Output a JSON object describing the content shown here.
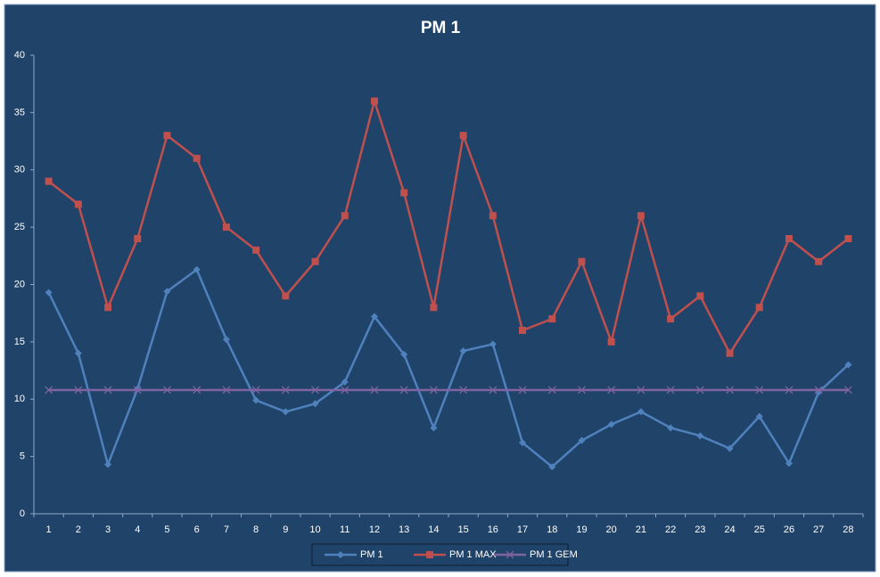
{
  "chart_data": {
    "type": "line",
    "title": "PM 1",
    "categories": [
      "1",
      "2",
      "3",
      "4",
      "5",
      "6",
      "7",
      "8",
      "9",
      "10",
      "11",
      "12",
      "13",
      "14",
      "15",
      "16",
      "17",
      "18",
      "19",
      "20",
      "21",
      "22",
      "23",
      "24",
      "25",
      "26",
      "27",
      "28"
    ],
    "series": [
      {
        "name": "PM 1",
        "color": "#4f81bd",
        "marker": "diamond",
        "values": [
          19.3,
          14.0,
          4.3,
          10.9,
          19.4,
          21.3,
          15.2,
          9.9,
          8.9,
          9.6,
          11.5,
          17.2,
          13.9,
          7.5,
          14.2,
          14.8,
          6.2,
          4.1,
          6.4,
          7.8,
          8.9,
          7.5,
          6.8,
          5.7,
          8.5,
          4.4,
          10.6,
          13.0
        ]
      },
      {
        "name": "PM 1 MAX",
        "color": "#c0504d",
        "marker": "square",
        "values": [
          29,
          27,
          18,
          24,
          33,
          31,
          25,
          23,
          19,
          22,
          26,
          36,
          28,
          18,
          33,
          26,
          16,
          17,
          22,
          15,
          26,
          17,
          19,
          14,
          18,
          24,
          22,
          24
        ]
      },
      {
        "name": "PM 1 GEM",
        "color": "#8064a2",
        "marker": "x",
        "values": [
          10.8,
          10.8,
          10.8,
          10.8,
          10.8,
          10.8,
          10.8,
          10.8,
          10.8,
          10.8,
          10.8,
          10.8,
          10.8,
          10.8,
          10.8,
          10.8,
          10.8,
          10.8,
          10.8,
          10.8,
          10.8,
          10.8,
          10.8,
          10.8,
          10.8,
          10.8,
          10.8,
          10.8
        ]
      }
    ],
    "ylim": [
      0,
      40
    ],
    "yticks": [
      0,
      5,
      10,
      15,
      20,
      25,
      30,
      35,
      40
    ],
    "grid": false,
    "legend": "bottom"
  }
}
